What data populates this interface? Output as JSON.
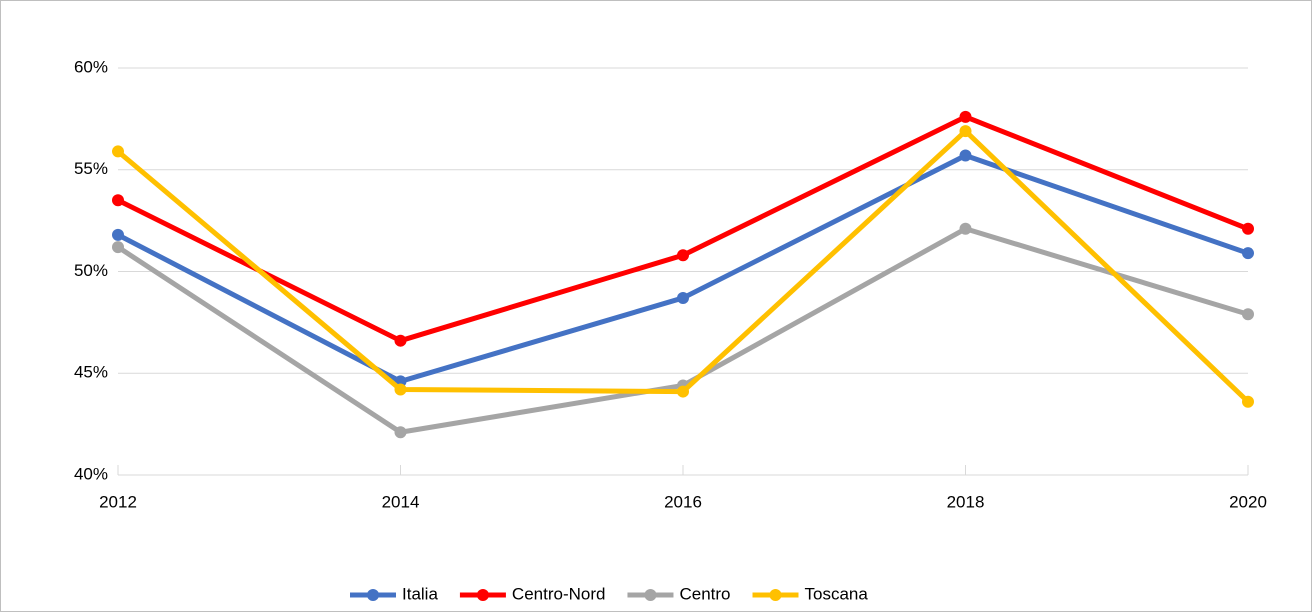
{
  "chart_data": {
    "type": "line",
    "x": [
      2012,
      2014,
      2016,
      2018,
      2020
    ],
    "xlim": [
      2012,
      2020
    ],
    "xticks": [
      2012,
      2014,
      2016,
      2018,
      2020
    ],
    "ylim": [
      40,
      60
    ],
    "yticks": [
      {
        "value": 40,
        "label": "40%"
      },
      {
        "value": 45,
        "label": "45%"
      },
      {
        "value": 50,
        "label": "50%"
      },
      {
        "value": 55,
        "label": "55%"
      },
      {
        "value": 60,
        "label": "60%"
      }
    ],
    "grid": true,
    "legend": "bottom",
    "series": [
      {
        "name": "Italia",
        "color": "#4472c4",
        "values": [
          51.8,
          44.6,
          48.7,
          55.7,
          50.9
        ]
      },
      {
        "name": "Centro-Nord",
        "color": "#ff0000",
        "values": [
          53.5,
          46.6,
          50.8,
          57.6,
          52.1
        ]
      },
      {
        "name": "Centro",
        "color": "#a5a5a5",
        "values": [
          51.2,
          42.1,
          44.4,
          52.1,
          47.9
        ]
      },
      {
        "name": "Toscana",
        "color": "#ffc000",
        "values": [
          55.9,
          44.2,
          44.1,
          56.9,
          43.6
        ]
      }
    ]
  }
}
